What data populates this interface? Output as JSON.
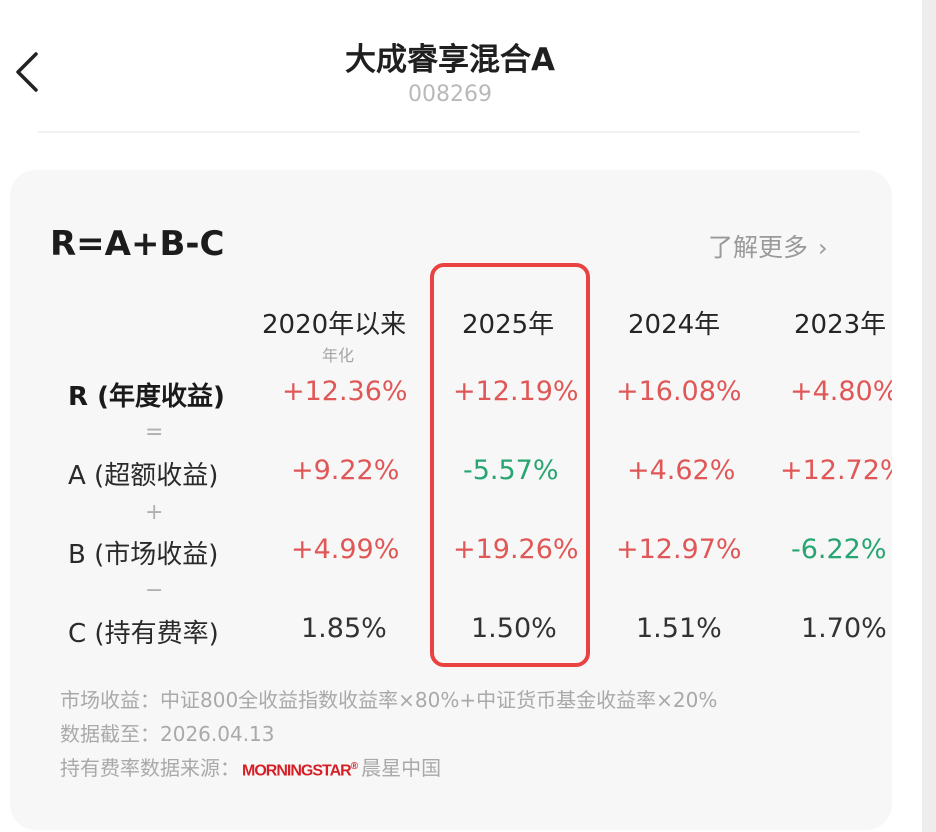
{
  "header": {
    "title": "大成睿享混合A",
    "code": "008269"
  },
  "card": {
    "formula": "R=A+B-C",
    "learn_more": "了解更多",
    "columns": [
      {
        "label": "2020年以来",
        "sub": "年化"
      },
      {
        "label": "2025年",
        "sub": ""
      },
      {
        "label": "2024年",
        "sub": ""
      },
      {
        "label": "2023年",
        "sub": ""
      }
    ],
    "rows": [
      {
        "label": "R (年度收益)",
        "values": [
          "+12.36%",
          "+12.19%",
          "+16.08%",
          "+4.80%"
        ],
        "trend": [
          "up",
          "up",
          "up",
          "up"
        ]
      },
      {
        "label": "A (超额收益)",
        "values": [
          "+9.22%",
          "-5.57%",
          "+4.62%",
          "+12.72%"
        ],
        "trend": [
          "up",
          "down",
          "up",
          "up"
        ]
      },
      {
        "label": "B (市场收益)",
        "values": [
          "+4.99%",
          "+19.26%",
          "+12.97%",
          "-6.22%"
        ],
        "trend": [
          "up",
          "up",
          "up",
          "down"
        ]
      },
      {
        "label": "C (持有费率)",
        "values": [
          "1.85%",
          "1.50%",
          "1.51%",
          "1.70%"
        ],
        "trend": [
          "neutral",
          "neutral",
          "neutral",
          "neutral"
        ]
      }
    ],
    "operators": [
      "=",
      "+",
      "−"
    ],
    "highlighted_column": "2025年",
    "notes": {
      "market_return": "市场收益：中证800全收益指数收益率×80%+中证货币基金收益率×20%",
      "data_as_of": "数据截至：2026.04.13",
      "fee_source_label": "持有费率数据来源：",
      "fee_source_brand": "MORNINGSTAR",
      "fee_source_name": "晨星中国"
    }
  },
  "colors": {
    "up": "#e05757",
    "down": "#27a672",
    "highlight": "#ea4141"
  }
}
